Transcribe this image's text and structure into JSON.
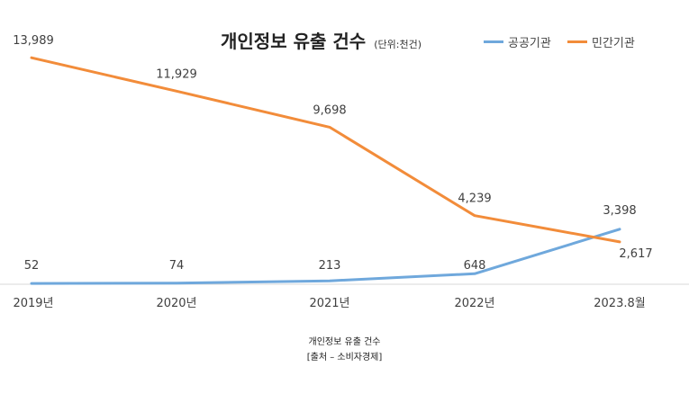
{
  "chart_data": {
    "type": "line",
    "title": "개인정보 유출 건수",
    "unit_note": "(단위:천건)",
    "categories": [
      "2019년",
      "2020년",
      "2021년",
      "2022년",
      "2023.8월"
    ],
    "series": [
      {
        "name": "공공기관",
        "color": "#6fa8dc",
        "values": [
          52,
          74,
          213,
          648,
          3398
        ],
        "labels": [
          "52",
          "74",
          "213",
          "648",
          "3,398"
        ]
      },
      {
        "name": "민간기관",
        "color": "#f28c3a",
        "values": [
          13989,
          11929,
          9698,
          4239,
          2617
        ],
        "labels": [
          "13,989",
          "11,929",
          "9,698",
          "4,239",
          "2,617"
        ]
      }
    ],
    "ylim": [
      0,
      14500
    ],
    "grid": false,
    "legend": "top-right"
  },
  "caption": {
    "line1": "개인정보 유출 건수",
    "line2": "[출처 – 소비자경제]"
  }
}
